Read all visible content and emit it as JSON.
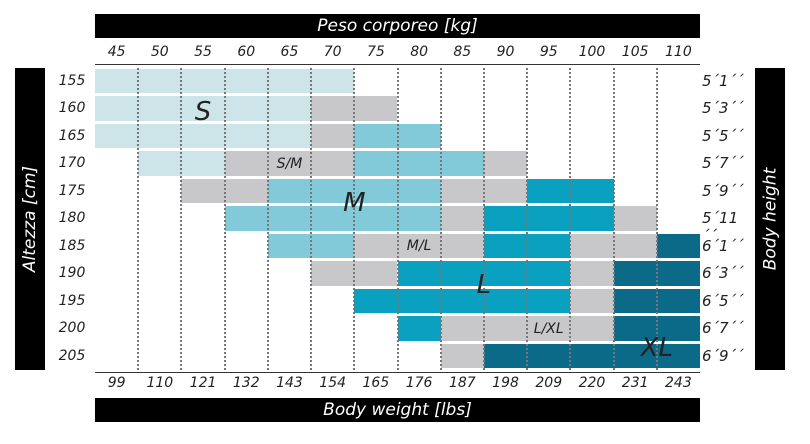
{
  "chart_data": {
    "type": "heatmap",
    "title_top": "Peso corporeo [kg]",
    "title_bottom": "Body weight [lbs]",
    "ylabel_left": "Altezza [cm]",
    "ylabel_right": "Body height",
    "x_kg": [
      "45",
      "50",
      "55",
      "60",
      "65",
      "70",
      "75",
      "80",
      "85",
      "90",
      "95",
      "100",
      "105",
      "110"
    ],
    "x_lbs": [
      "99",
      "110",
      "121",
      "132",
      "143",
      "154",
      "165",
      "176",
      "187",
      "198",
      "209",
      "220",
      "231",
      "243"
    ],
    "y_cm": [
      "155",
      "160",
      "165",
      "170",
      "175",
      "180",
      "185",
      "190",
      "195",
      "200",
      "205"
    ],
    "y_ft": [
      "5´1´´",
      "5´3´´",
      "5´5´´",
      "5´7´´",
      "5´9´´",
      "5´11´´",
      "6´1´´",
      "6´3´´",
      "6´5´´",
      "6´7´´",
      "6´9´´"
    ],
    "sizes": {
      "S": "#cde4e8",
      "S/M": "#c8c8ca",
      "M": "#82c9da",
      "M/L": "#c8c8ca",
      "L": "#0aa0c0",
      "L/XL": "#c8c8ca",
      "XL": "#0a6a88"
    },
    "rows": [
      [
        [
          "S",
          0,
          5
        ]
      ],
      [
        [
          "S",
          0,
          4
        ],
        [
          "G",
          5,
          6
        ]
      ],
      [
        [
          "S",
          0,
          4
        ],
        [
          "G",
          5,
          5
        ],
        [
          "M",
          6,
          7
        ]
      ],
      [
        [
          "S",
          1,
          2
        ],
        [
          "G",
          3,
          5
        ],
        [
          "M",
          6,
          8
        ],
        [
          "G",
          9,
          9
        ]
      ],
      [
        [
          "G",
          2,
          3
        ],
        [
          "M",
          4,
          7
        ],
        [
          "G",
          8,
          9
        ],
        [
          "L",
          10,
          11
        ]
      ],
      [
        [
          "M",
          3,
          7
        ],
        [
          "G",
          8,
          8
        ],
        [
          "L",
          9,
          11
        ],
        [
          "G",
          12,
          12
        ]
      ],
      [
        [
          "M",
          4,
          5
        ],
        [
          "G",
          6,
          8
        ],
        [
          "L",
          9,
          10
        ],
        [
          "G",
          11,
          12
        ],
        [
          "XL",
          13,
          13
        ]
      ],
      [
        [
          "G",
          5,
          6
        ],
        [
          "L",
          7,
          10
        ],
        [
          "G",
          11,
          11
        ],
        [
          "XL",
          12,
          13
        ]
      ],
      [
        [
          "L",
          6,
          10
        ],
        [
          "G",
          11,
          11
        ],
        [
          "XL",
          12,
          13
        ]
      ],
      [
        [
          "L",
          7,
          7
        ],
        [
          "G",
          8,
          11
        ],
        [
          "XL",
          12,
          13
        ]
      ],
      [
        [
          "G",
          8,
          8
        ],
        [
          "XL",
          9,
          13
        ]
      ]
    ],
    "labels": [
      {
        "text": "S",
        "col": 2.5,
        "row": 1.6,
        "big": true
      },
      {
        "text": "S/M",
        "col": 4.5,
        "row": 3.5,
        "big": false
      },
      {
        "text": "M",
        "col": 6,
        "row": 4.9,
        "big": true
      },
      {
        "text": "M/L",
        "col": 7.5,
        "row": 6.5,
        "big": false
      },
      {
        "text": "L",
        "col": 9,
        "row": 7.9,
        "big": true
      },
      {
        "text": "L/XL",
        "col": 10.5,
        "row": 9.5,
        "big": false
      },
      {
        "text": "XL",
        "col": 13,
        "row": 10.2,
        "big": true
      }
    ]
  }
}
